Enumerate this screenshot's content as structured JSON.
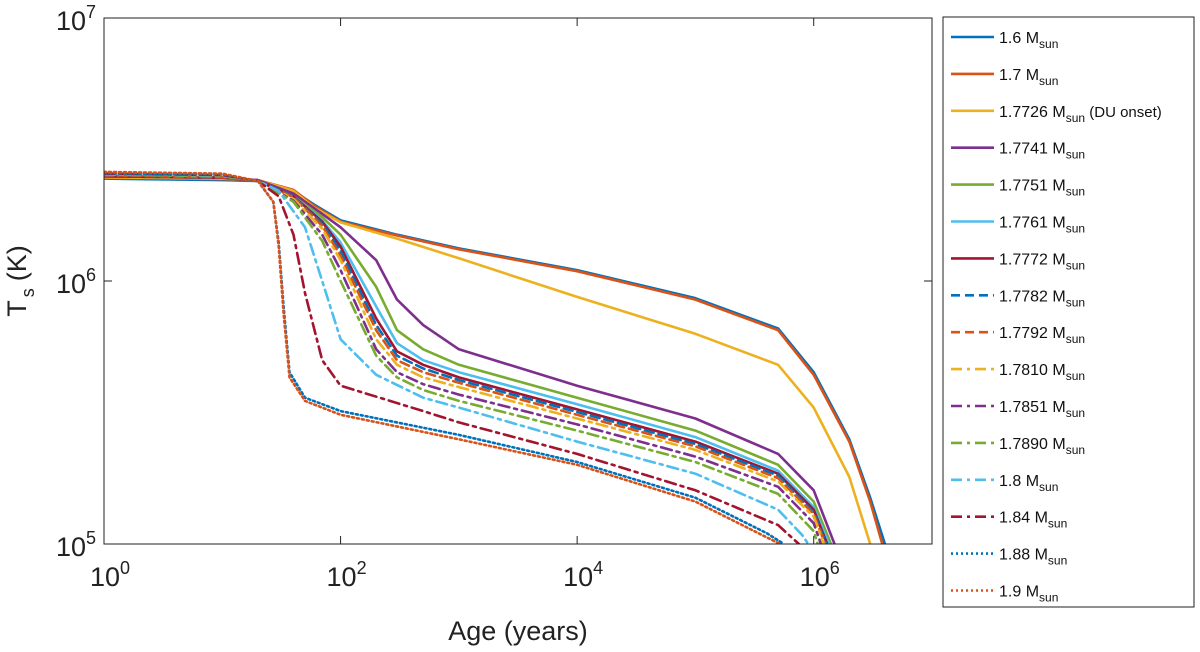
{
  "chart_data": {
    "type": "line",
    "xlabel": "Age (years)",
    "ylabel_main": "T",
    "ylabel_sub": "s",
    "ylabel_unit": "(K)",
    "xscale": "log",
    "yscale": "log",
    "xlim": [
      1,
      10000000
    ],
    "ylim": [
      100000,
      10000000
    ],
    "grid": false,
    "legend_position": "outside-right",
    "x_ticks": [
      {
        "base": "10",
        "exp": "0",
        "value": 1
      },
      {
        "base": "10",
        "exp": "2",
        "value": 100
      },
      {
        "base": "10",
        "exp": "4",
        "value": 10000
      },
      {
        "base": "10",
        "exp": "6",
        "value": 1000000
      }
    ],
    "y_ticks": [
      {
        "base": "10",
        "exp": "5",
        "value": 100000
      },
      {
        "base": "10",
        "exp": "6",
        "value": 1000000
      },
      {
        "base": "10",
        "exp": "7",
        "value": 10000000
      }
    ],
    "series": [
      {
        "name": "1.6",
        "sub": "sun",
        "suffix": "",
        "color": "#0072BD",
        "dash": "solid",
        "points": [
          [
            1,
            2450000.0
          ],
          [
            10,
            2420000.0
          ],
          [
            20,
            2400000.0
          ],
          [
            40,
            2200000.0
          ],
          [
            60,
            1950000.0
          ],
          [
            100,
            1700000.0
          ],
          [
            300,
            1500000.0
          ],
          [
            1000,
            1330000.0
          ],
          [
            10000,
            1100000.0
          ],
          [
            100000,
            860000.0
          ],
          [
            500000,
            660000.0
          ],
          [
            1000000,
            450000.0
          ],
          [
            2000000,
            250000.0
          ],
          [
            3000000,
            150000.0
          ],
          [
            4000000,
            100000.0
          ]
        ]
      },
      {
        "name": "1.7",
        "sub": "sun",
        "suffix": "",
        "color": "#D95319",
        "dash": "solid",
        "points": [
          [
            1,
            2470000.0
          ],
          [
            10,
            2440000.0
          ],
          [
            20,
            2420000.0
          ],
          [
            40,
            2220000.0
          ],
          [
            60,
            1930000.0
          ],
          [
            100,
            1680000.0
          ],
          [
            300,
            1490000.0
          ],
          [
            1000,
            1320000.0
          ],
          [
            10000,
            1090000.0
          ],
          [
            100000,
            850000.0
          ],
          [
            500000,
            650000.0
          ],
          [
            1000000,
            440000.0
          ],
          [
            2000000,
            245000.0
          ],
          [
            3000000,
            145000.0
          ],
          [
            3800000,
            100000.0
          ]
        ]
      },
      {
        "name": "1.7726",
        "sub": "sun",
        "suffix": " (DU onset)",
        "color": "#EDB120",
        "dash": "solid",
        "points": [
          [
            1,
            2480000.0
          ],
          [
            10,
            2450000.0
          ],
          [
            20,
            2420000.0
          ],
          [
            40,
            2200000.0
          ],
          [
            60,
            1900000.0
          ],
          [
            100,
            1670000.0
          ],
          [
            300,
            1450000.0
          ],
          [
            1000,
            1220000.0
          ],
          [
            10000,
            870000.0
          ],
          [
            100000,
            630000.0
          ],
          [
            500000,
            480000.0
          ],
          [
            1000000,
            330000.0
          ],
          [
            2000000,
            180000.0
          ],
          [
            3000000,
            100000.0
          ]
        ]
      },
      {
        "name": "1.7741",
        "sub": "sun",
        "suffix": "",
        "color": "#7E2F8E",
        "dash": "solid",
        "points": [
          [
            1,
            2500000.0
          ],
          [
            10,
            2470000.0
          ],
          [
            20,
            2420000.0
          ],
          [
            40,
            2150000.0
          ],
          [
            70,
            1800000.0
          ],
          [
            100,
            1600000.0
          ],
          [
            200,
            1200000.0
          ],
          [
            300,
            850000.0
          ],
          [
            500,
            680000.0
          ],
          [
            1000,
            550000.0
          ],
          [
            10000,
            400000.0
          ],
          [
            100000,
            300000.0
          ],
          [
            500000,
            220000.0
          ],
          [
            1000000,
            160000.0
          ],
          [
            1500000,
            100000.0
          ]
        ]
      },
      {
        "name": "1.7751",
        "sub": "sun",
        "suffix": "",
        "color": "#77AC30",
        "dash": "solid",
        "points": [
          [
            1,
            2500000.0
          ],
          [
            10,
            2470000.0
          ],
          [
            20,
            2400000.0
          ],
          [
            40,
            2100000.0
          ],
          [
            70,
            1750000.0
          ],
          [
            100,
            1500000.0
          ],
          [
            200,
            950000.0
          ],
          [
            300,
            650000.0
          ],
          [
            500,
            550000.0
          ],
          [
            1000,
            480000.0
          ],
          [
            10000,
            360000.0
          ],
          [
            100000,
            270000.0
          ],
          [
            500000,
            200000.0
          ],
          [
            1000000,
            145000.0
          ],
          [
            1400000,
            100000.0
          ]
        ]
      },
      {
        "name": "1.7761",
        "sub": "sun",
        "suffix": "",
        "color": "#4DBEEE",
        "dash": "solid",
        "points": [
          [
            1,
            2500000.0
          ],
          [
            10,
            2470000.0
          ],
          [
            20,
            2400000.0
          ],
          [
            40,
            2100000.0
          ],
          [
            70,
            1700000.0
          ],
          [
            100,
            1400000.0
          ],
          [
            200,
            800000.0
          ],
          [
            300,
            580000.0
          ],
          [
            500,
            500000.0
          ],
          [
            1000,
            450000.0
          ],
          [
            10000,
            340000.0
          ],
          [
            100000,
            255000.0
          ],
          [
            500000,
            190000.0
          ],
          [
            1000000,
            138000.0
          ],
          [
            1350000,
            100000.0
          ]
        ]
      },
      {
        "name": "1.7772",
        "sub": "sun",
        "suffix": "",
        "color": "#A2142F",
        "dash": "solid",
        "points": [
          [
            1,
            2500000.0
          ],
          [
            10,
            2470000.0
          ],
          [
            20,
            2400000.0
          ],
          [
            40,
            2100000.0
          ],
          [
            70,
            1680000.0
          ],
          [
            100,
            1350000.0
          ],
          [
            200,
            720000.0
          ],
          [
            300,
            540000.0
          ],
          [
            500,
            480000.0
          ],
          [
            1000,
            430000.0
          ],
          [
            10000,
            325000.0
          ],
          [
            100000,
            245000.0
          ],
          [
            500000,
            185000.0
          ],
          [
            1000000,
            135000.0
          ],
          [
            1300000,
            100000.0
          ]
        ]
      },
      {
        "name": "1.7782",
        "sub": "sun",
        "suffix": "",
        "color": "#0072BD",
        "dash": "dash",
        "points": [
          [
            1,
            2520000.0
          ],
          [
            10,
            2480000.0
          ],
          [
            20,
            2400000.0
          ],
          [
            40,
            2100000.0
          ],
          [
            70,
            1650000.0
          ],
          [
            100,
            1300000.0
          ],
          [
            200,
            680000.0
          ],
          [
            300,
            520000.0
          ],
          [
            500,
            465000.0
          ],
          [
            1000,
            420000.0
          ],
          [
            10000,
            318000.0
          ],
          [
            100000,
            240000.0
          ],
          [
            500000,
            182000.0
          ],
          [
            1000000,
            132000.0
          ],
          [
            1280000,
            100000.0
          ]
        ]
      },
      {
        "name": "1.7792",
        "sub": "sun",
        "suffix": "",
        "color": "#D95319",
        "dash": "dash",
        "points": [
          [
            1,
            2520000.0
          ],
          [
            10,
            2480000.0
          ],
          [
            20,
            2400000.0
          ],
          [
            40,
            2080000.0
          ],
          [
            70,
            1620000.0
          ],
          [
            100,
            1250000.0
          ],
          [
            200,
            650000.0
          ],
          [
            300,
            500000.0
          ],
          [
            500,
            450000.0
          ],
          [
            1000,
            410000.0
          ],
          [
            10000,
            310000.0
          ],
          [
            100000,
            235000.0
          ],
          [
            500000,
            178000.0
          ],
          [
            1000000,
            130000.0
          ],
          [
            1250000,
            100000.0
          ]
        ]
      },
      {
        "name": "1.7810",
        "sub": "sun",
        "suffix": "",
        "color": "#EDB120",
        "dash": "dashdot",
        "points": [
          [
            1,
            2530000.0
          ],
          [
            10,
            2500000.0
          ],
          [
            20,
            2400000.0
          ],
          [
            40,
            2050000.0
          ],
          [
            70,
            1580000.0
          ],
          [
            100,
            1200000.0
          ],
          [
            200,
            600000.0
          ],
          [
            300,
            480000.0
          ],
          [
            500,
            430000.0
          ],
          [
            1000,
            395000.0
          ],
          [
            10000,
            300000.0
          ],
          [
            100000,
            228000.0
          ],
          [
            500000,
            173000.0
          ],
          [
            1000000,
            127000.0
          ],
          [
            1220000,
            100000.0
          ]
        ]
      },
      {
        "name": "1.7851",
        "sub": "sun",
        "suffix": "",
        "color": "#7E2F8E",
        "dash": "dashdot",
        "points": [
          [
            1,
            2530000.0
          ],
          [
            10,
            2500000.0
          ],
          [
            20,
            2400000.0
          ],
          [
            40,
            2020000.0
          ],
          [
            70,
            1500000.0
          ],
          [
            100,
            1100000.0
          ],
          [
            200,
            550000.0
          ],
          [
            300,
            450000.0
          ],
          [
            500,
            405000.0
          ],
          [
            1000,
            370000.0
          ],
          [
            10000,
            285000.0
          ],
          [
            100000,
            215000.0
          ],
          [
            500000,
            165000.0
          ],
          [
            1000000,
            120000.0
          ],
          [
            1150000,
            100000.0
          ]
        ]
      },
      {
        "name": "1.7890",
        "sub": "sun",
        "suffix": "",
        "color": "#77AC30",
        "dash": "dashdot",
        "points": [
          [
            1,
            2540000.0
          ],
          [
            10,
            2500000.0
          ],
          [
            20,
            2400000.0
          ],
          [
            40,
            2000000.0
          ],
          [
            70,
            1420000.0
          ],
          [
            100,
            1000000.0
          ],
          [
            200,
            520000.0
          ],
          [
            300,
            430000.0
          ],
          [
            500,
            385000.0
          ],
          [
            1000,
            350000.0
          ],
          [
            10000,
            270000.0
          ],
          [
            100000,
            205000.0
          ],
          [
            500000,
            155000.0
          ],
          [
            1000000,
            112000.0
          ],
          [
            1080000,
            100000.0
          ]
        ]
      },
      {
        "name": "1.8",
        "sub": "sun",
        "suffix": "",
        "color": "#4DBEEE",
        "dash": "dashdot",
        "points": [
          [
            1,
            2550000.0
          ],
          [
            10,
            2520000.0
          ],
          [
            20,
            2400000.0
          ],
          [
            30,
            2200000.0
          ],
          [
            50,
            1600000.0
          ],
          [
            70,
            1000000.0
          ],
          [
            100,
            600000.0
          ],
          [
            200,
            440000.0
          ],
          [
            500,
            360000.0
          ],
          [
            1000,
            330000.0
          ],
          [
            10000,
            245000.0
          ],
          [
            100000,
            185000.0
          ],
          [
            500000,
            135000.0
          ],
          [
            800000,
            108000.0
          ],
          [
            900000,
            100000.0
          ]
        ]
      },
      {
        "name": "1.84",
        "sub": "sun",
        "suffix": "",
        "color": "#A2142F",
        "dash": "dashdot",
        "points": [
          [
            1,
            2560000.0
          ],
          [
            10,
            2530000.0
          ],
          [
            20,
            2400000.0
          ],
          [
            30,
            2100000.0
          ],
          [
            40,
            1500000.0
          ],
          [
            50,
            900000.0
          ],
          [
            70,
            500000.0
          ],
          [
            100,
            400000.0
          ],
          [
            500,
            320000.0
          ],
          [
            1000,
            290000.0
          ],
          [
            10000,
            220000.0
          ],
          [
            100000,
            160000.0
          ],
          [
            500000,
            118000.0
          ],
          [
            750000,
            100000.0
          ]
        ]
      },
      {
        "name": "1.88",
        "sub": "sun",
        "suffix": "",
        "color": "#0072BD",
        "dash": "dot",
        "points": [
          [
            1,
            2570000.0
          ],
          [
            10,
            2540000.0
          ],
          [
            20,
            2400000.0
          ],
          [
            27,
            2000000.0
          ],
          [
            30,
            1400000.0
          ],
          [
            33,
            800000.0
          ],
          [
            37,
            450000.0
          ],
          [
            50,
            360000.0
          ],
          [
            100,
            320000.0
          ],
          [
            1000,
            260000.0
          ],
          [
            10000,
            205000.0
          ],
          [
            100000,
            150000.0
          ],
          [
            400000,
            110000.0
          ],
          [
            560000,
            100000.0
          ]
        ]
      },
      {
        "name": "1.9",
        "sub": "sun",
        "suffix": "",
        "color": "#D95319",
        "dash": "dot",
        "points": [
          [
            1,
            2600000.0
          ],
          [
            10,
            2560000.0
          ],
          [
            20,
            2400000.0
          ],
          [
            27,
            2000000.0
          ],
          [
            30,
            1350000.0
          ],
          [
            33,
            750000.0
          ],
          [
            37,
            430000.0
          ],
          [
            50,
            350000.0
          ],
          [
            100,
            310000.0
          ],
          [
            1000,
            250000.0
          ],
          [
            10000,
            200000.0
          ],
          [
            100000,
            145000.0
          ],
          [
            400000,
            106000.0
          ],
          [
            520000,
            100000.0
          ]
        ]
      }
    ]
  }
}
